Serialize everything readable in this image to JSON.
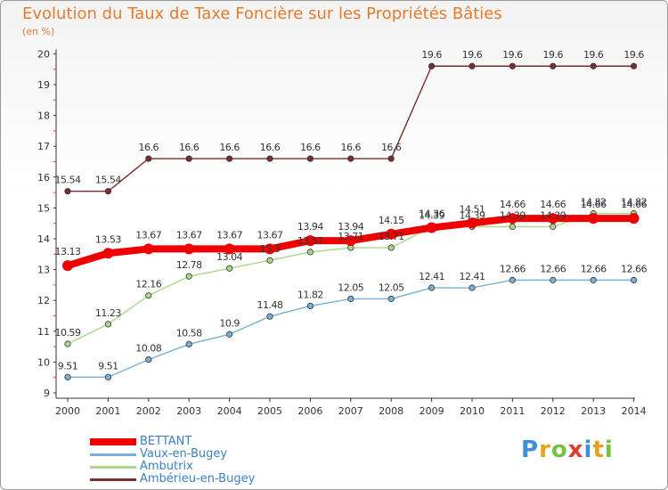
{
  "header": {
    "title": "Evolution du Taux de Taxe Foncière sur les Propriétés Bâties",
    "unit": "(en %)"
  },
  "logo": {
    "text": "Proxiti",
    "letters": [
      "P",
      "r",
      "o",
      "x",
      "i",
      "t",
      "i"
    ],
    "colors": [
      "#3d8fd8",
      "#e8a020",
      "#7ac143",
      "#e03a2f",
      "#3d8fd8",
      "#e8a020",
      "#7ac143"
    ]
  },
  "chart_data": {
    "type": "line",
    "title": "Evolution du Taux de Taxe Foncière sur les Propriétés Bâties",
    "ylabel": "(en %)",
    "xlabel": "",
    "ylim": [
      9,
      20
    ],
    "yticks": [
      "9",
      "10",
      "11",
      "12",
      "13",
      "14",
      "15",
      "16",
      "17",
      "18",
      "19",
      "20"
    ],
    "x": [
      "2000",
      "2001",
      "2002",
      "2003",
      "2004",
      "2005",
      "2006",
      "2007",
      "2008",
      "2009",
      "2010",
      "2011",
      "2012",
      "2013",
      "2014"
    ],
    "grid": false,
    "legend": "bottom-left",
    "series": [
      {
        "name": "Ambérieu-en-Bugey",
        "color": "#7a2e2e",
        "values": [
          15.54,
          15.54,
          16.6,
          16.6,
          16.6,
          16.6,
          16.6,
          16.6,
          16.6,
          19.6,
          19.6,
          19.6,
          19.6,
          19.6,
          19.6
        ],
        "labels": [
          "15.54",
          "15.54",
          "16.6",
          "16.6",
          "16.6",
          "16.6",
          "16.6",
          "16.6",
          "16.6",
          "19.6",
          "19.6",
          "19.6",
          "19.6",
          "19.6",
          "19.6"
        ]
      },
      {
        "name": "Ambutrix",
        "color": "#a9d88a",
        "values": [
          10.59,
          11.23,
          12.16,
          12.78,
          13.04,
          13.3,
          13.57,
          13.71,
          13.71,
          14.39,
          14.39,
          14.39,
          14.39,
          14.82,
          14.82
        ],
        "labels": [
          "10.59",
          "11.23",
          "12.16",
          "12.78",
          "13.04",
          "13.3",
          "13.57",
          "13.71",
          "13.71",
          "14.39",
          "14.39",
          "14.39",
          "14.39",
          "14.82",
          "14.82"
        ]
      },
      {
        "name": "Vaux-en-Bugey",
        "color": "#7ab0d8",
        "values": [
          9.51,
          9.51,
          10.08,
          10.58,
          10.9,
          11.48,
          11.82,
          12.05,
          12.05,
          12.41,
          12.41,
          12.66,
          12.66,
          12.66,
          12.66
        ],
        "labels": [
          "9.51",
          "9.51",
          "10.08",
          "10.58",
          "10.9",
          "11.48",
          "11.82",
          "12.05",
          "12.05",
          "12.41",
          "12.41",
          "12.66",
          "12.66",
          "12.66",
          "12.66"
        ]
      },
      {
        "name": "BETTANT",
        "color": "#ee0000",
        "values": [
          13.13,
          13.53,
          13.67,
          13.67,
          13.67,
          13.67,
          13.94,
          13.94,
          14.15,
          14.36,
          14.51,
          14.66,
          14.66,
          14.66,
          14.66
        ],
        "labels": [
          "13.13",
          "13.53",
          "13.67",
          "13.67",
          "13.67",
          "13.67",
          "13.94",
          "13.94",
          "14.15",
          "14.36",
          "14.51",
          "14.66",
          "14.66",
          "14.66",
          "14.66"
        ]
      }
    ],
    "legend_entries": [
      {
        "name": "BETTANT",
        "color": "#ee0000"
      },
      {
        "name": "Vaux-en-Bugey",
        "color": "#7ab0d8"
      },
      {
        "name": "Ambutrix",
        "color": "#a9d88a"
      },
      {
        "name": "Ambérieu-en-Bugey",
        "color": "#7a2e2e"
      }
    ]
  }
}
